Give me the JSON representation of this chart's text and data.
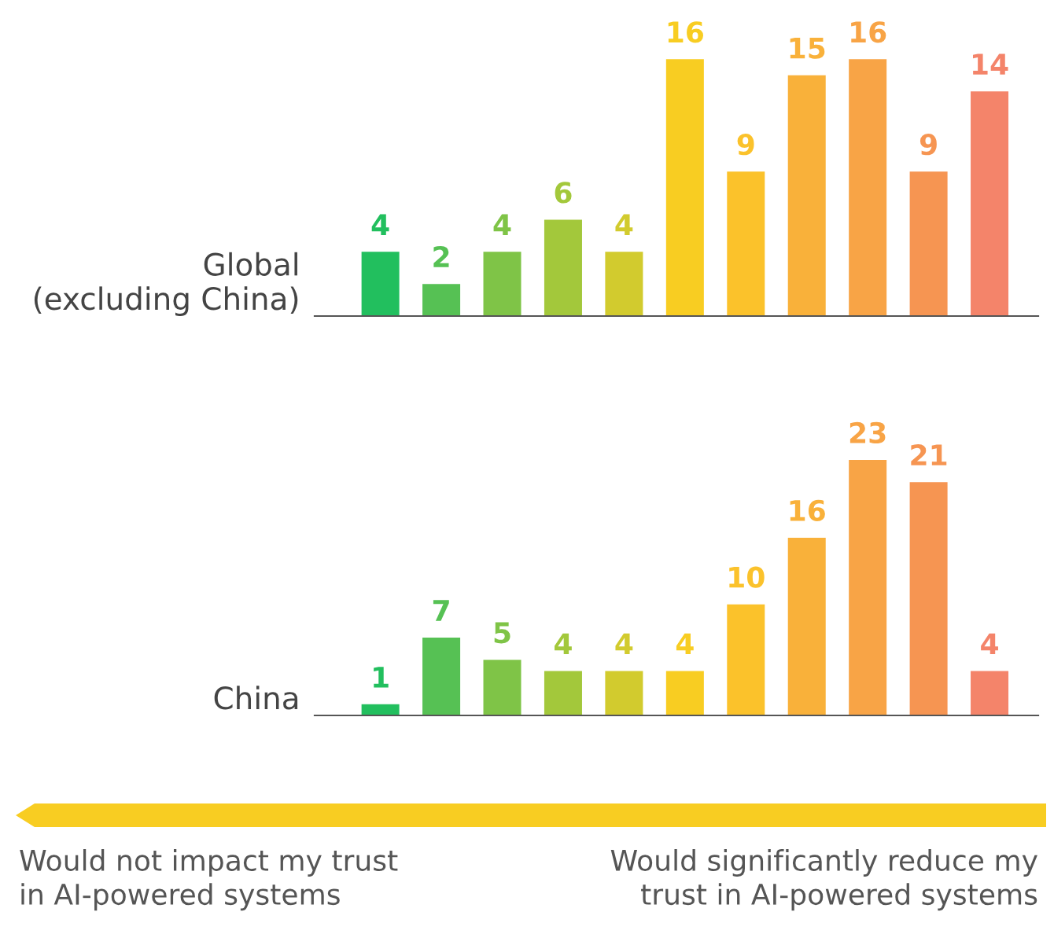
{
  "chart_data": [
    {
      "type": "bar",
      "ylabel": "Global\n(excluding China)",
      "categories": [
        null,
        null,
        null,
        null,
        null,
        null,
        null,
        null,
        null,
        null,
        null
      ],
      "values": [
        4,
        2,
        4,
        6,
        4,
        16,
        9,
        15,
        16,
        9,
        14
      ],
      "colors": [
        "#22bf5e",
        "#56c154",
        "#7fc447",
        "#a3c83b",
        "#d2cb2e",
        "#f8cd22",
        "#fbc22b",
        "#f9b13a",
        "#f8a446",
        "#f69552",
        "#f4846a"
      ],
      "data_labels": true
    },
    {
      "type": "bar",
      "ylabel": "China",
      "categories": [
        null,
        null,
        null,
        null,
        null,
        null,
        null,
        null,
        null,
        null,
        null
      ],
      "values": [
        1,
        7,
        5,
        4,
        4,
        4,
        10,
        16,
        23,
        21,
        4
      ],
      "colors": [
        "#22bf5e",
        "#56c154",
        "#7fc447",
        "#a3c83b",
        "#d2cb2e",
        "#f8cd22",
        "#fbc22b",
        "#f9b13a",
        "#f8a446",
        "#f69552",
        "#f4846a"
      ],
      "data_labels": true,
      "annotations": [
        "Would not impact my trust\nin AI-powered systems",
        "Would significantly reduce my\ntrust in AI-powered systems"
      ]
    }
  ]
}
